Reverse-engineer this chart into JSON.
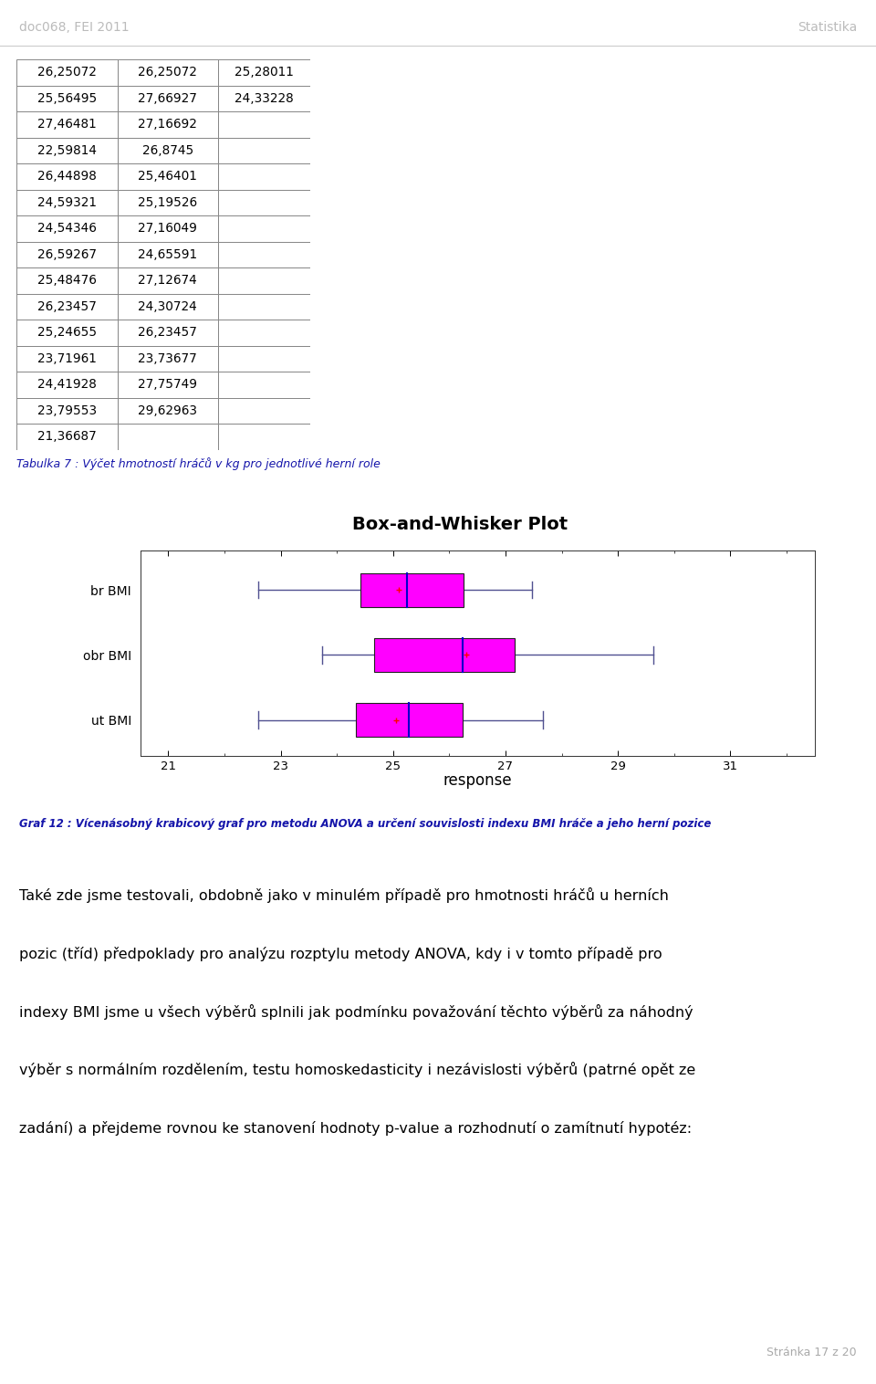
{
  "header_left": "doc068, FEI 2011",
  "header_right": "Statistika",
  "table_data": [
    [
      "26,25072",
      "26,25072",
      "25,28011"
    ],
    [
      "25,56495",
      "27,66927",
      "24,33228"
    ],
    [
      "27,46481",
      "27,16692",
      ""
    ],
    [
      "22,59814",
      "26,8745",
      ""
    ],
    [
      "26,44898",
      "25,46401",
      ""
    ],
    [
      "24,59321",
      "25,19526",
      ""
    ],
    [
      "24,54346",
      "27,16049",
      ""
    ],
    [
      "26,59267",
      "24,65591",
      ""
    ],
    [
      "25,48476",
      "27,12674",
      ""
    ],
    [
      "26,23457",
      "24,30724",
      ""
    ],
    [
      "25,24655",
      "26,23457",
      ""
    ],
    [
      "23,71961",
      "23,73677",
      ""
    ],
    [
      "24,41928",
      "27,75749",
      ""
    ],
    [
      "23,79553",
      "29,62963",
      ""
    ],
    [
      "21,36687",
      "",
      ""
    ]
  ],
  "table_caption": "Tabulka 7 : Výčet hmotností hráčů v kg pro jednotlivé herní role",
  "plot_title": "Box-and-Whisker Plot",
  "plot_xlabel": "response",
  "plot_labels": [
    "br BMI",
    "obr BMI",
    "ut BMI"
  ],
  "box_color": "#FF00FF",
  "whisker_color": "#505090",
  "median_color": "#0000CC",
  "mean_color": "#FF0000",
  "br_bmi": {
    "whisker_low": 22.59814,
    "q1": 24.41928,
    "median": 25.24655,
    "q3": 26.25072,
    "whisker_high": 27.46481,
    "mean": 25.1
  },
  "obr_bmi": {
    "whisker_low": 23.73677,
    "q1": 24.65591,
    "median": 26.23457,
    "q3": 27.16049,
    "whisker_high": 29.62963,
    "mean": 26.3
  },
  "ut_bmi": {
    "whisker_low": 22.59814,
    "q1": 24.33228,
    "median": 25.28011,
    "q3": 26.23457,
    "whisker_high": 27.66927,
    "mean": 25.05
  },
  "xlim": [
    20.5,
    32.5
  ],
  "xticks": [
    21,
    23,
    25,
    27,
    29,
    31
  ],
  "graf_caption": "Graf 12 : Vícenásobný krabicový graf pro metodu ANOVA a určení souvislosti indexu BMI hráče a jeho herní pozice",
  "body_lines": [
    "Také zde jsme testovali, obdobně jako v minulém případě pro hmotnosti hráčů u herních",
    "pozic (tříd) předpoklady pro analýzu rozptylu metody ANOVA, kdy i v tomto případě pro",
    "indexy BMI jsme u všech výběrů splnili jak podmínku považování těchto výběrů za náhodný",
    "výběr s normálním rozdělením, testu homoskedasticity i nezávislosti výběrů (patrné opět ze",
    "zadání) a přejdeme rovnou ke stanovení hodnoty p-value a rozhodnutí o zamítnutí hypotéz:"
  ],
  "footer_text": "Stránka 17 z 20",
  "background_color": "#FFFFFF",
  "table_border_color": "#888888",
  "caption_color": "#1515AA",
  "footer_color": "#AAAAAA"
}
